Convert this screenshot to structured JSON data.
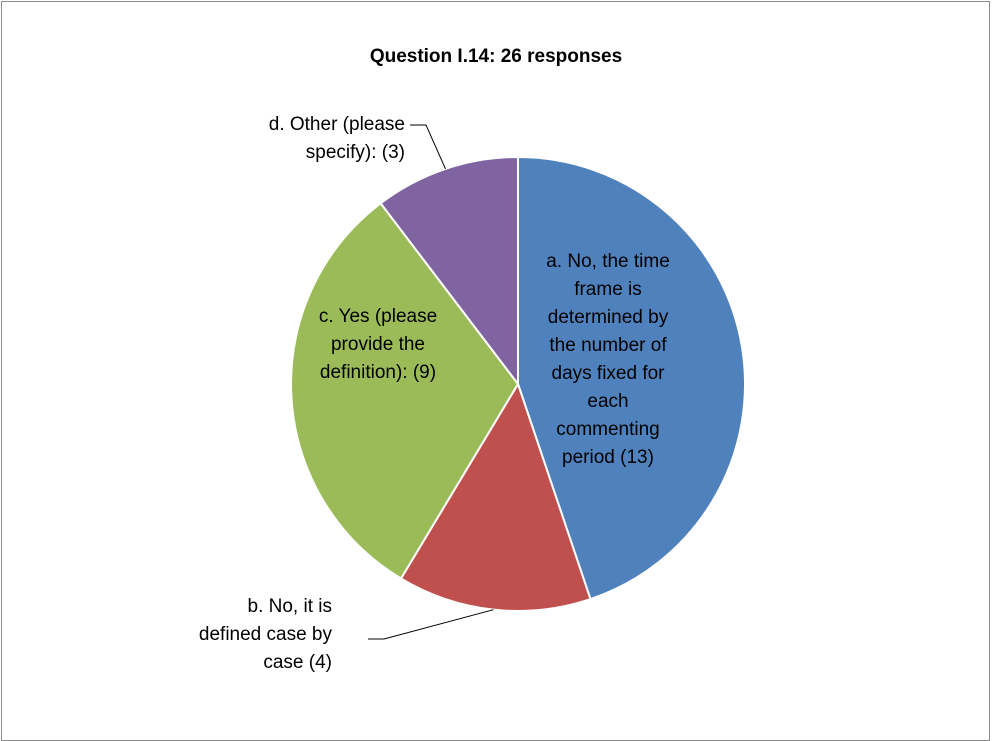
{
  "chart_data": {
    "type": "pie",
    "title": "Question I.14: 26 responses",
    "total": 26,
    "series": [
      {
        "values": [
          13,
          4,
          9,
          3
        ]
      }
    ],
    "slices": [
      {
        "label": "a. No, the time frame is determined by the number of days fixed for each commenting period (13)",
        "label_lines": [
          "a. No, the time",
          "frame is",
          "determined by",
          "the number of",
          "days fixed for",
          "each",
          "commenting",
          "period (13)"
        ],
        "value": 13,
        "color": "#4f81bd"
      },
      {
        "label": "b. No, it is defined case by case (4)",
        "label_lines": [
          "b. No, it is",
          "defined case by",
          "case (4)"
        ],
        "value": 4,
        "color": "#c0504d"
      },
      {
        "label": "c. Yes (please provide the definition): (9)",
        "label_lines": [
          "c. Yes (please",
          "provide the",
          "definition): (9)"
        ],
        "value": 9,
        "color": "#9bbb59"
      },
      {
        "label": "d. Other (please specify): (3)",
        "label_lines": [
          "d. Other (please",
          "specify): (3)"
        ],
        "value": 3,
        "color": "#8064a2"
      }
    ],
    "legend": "none",
    "slice_border_color": "#ffffff"
  }
}
